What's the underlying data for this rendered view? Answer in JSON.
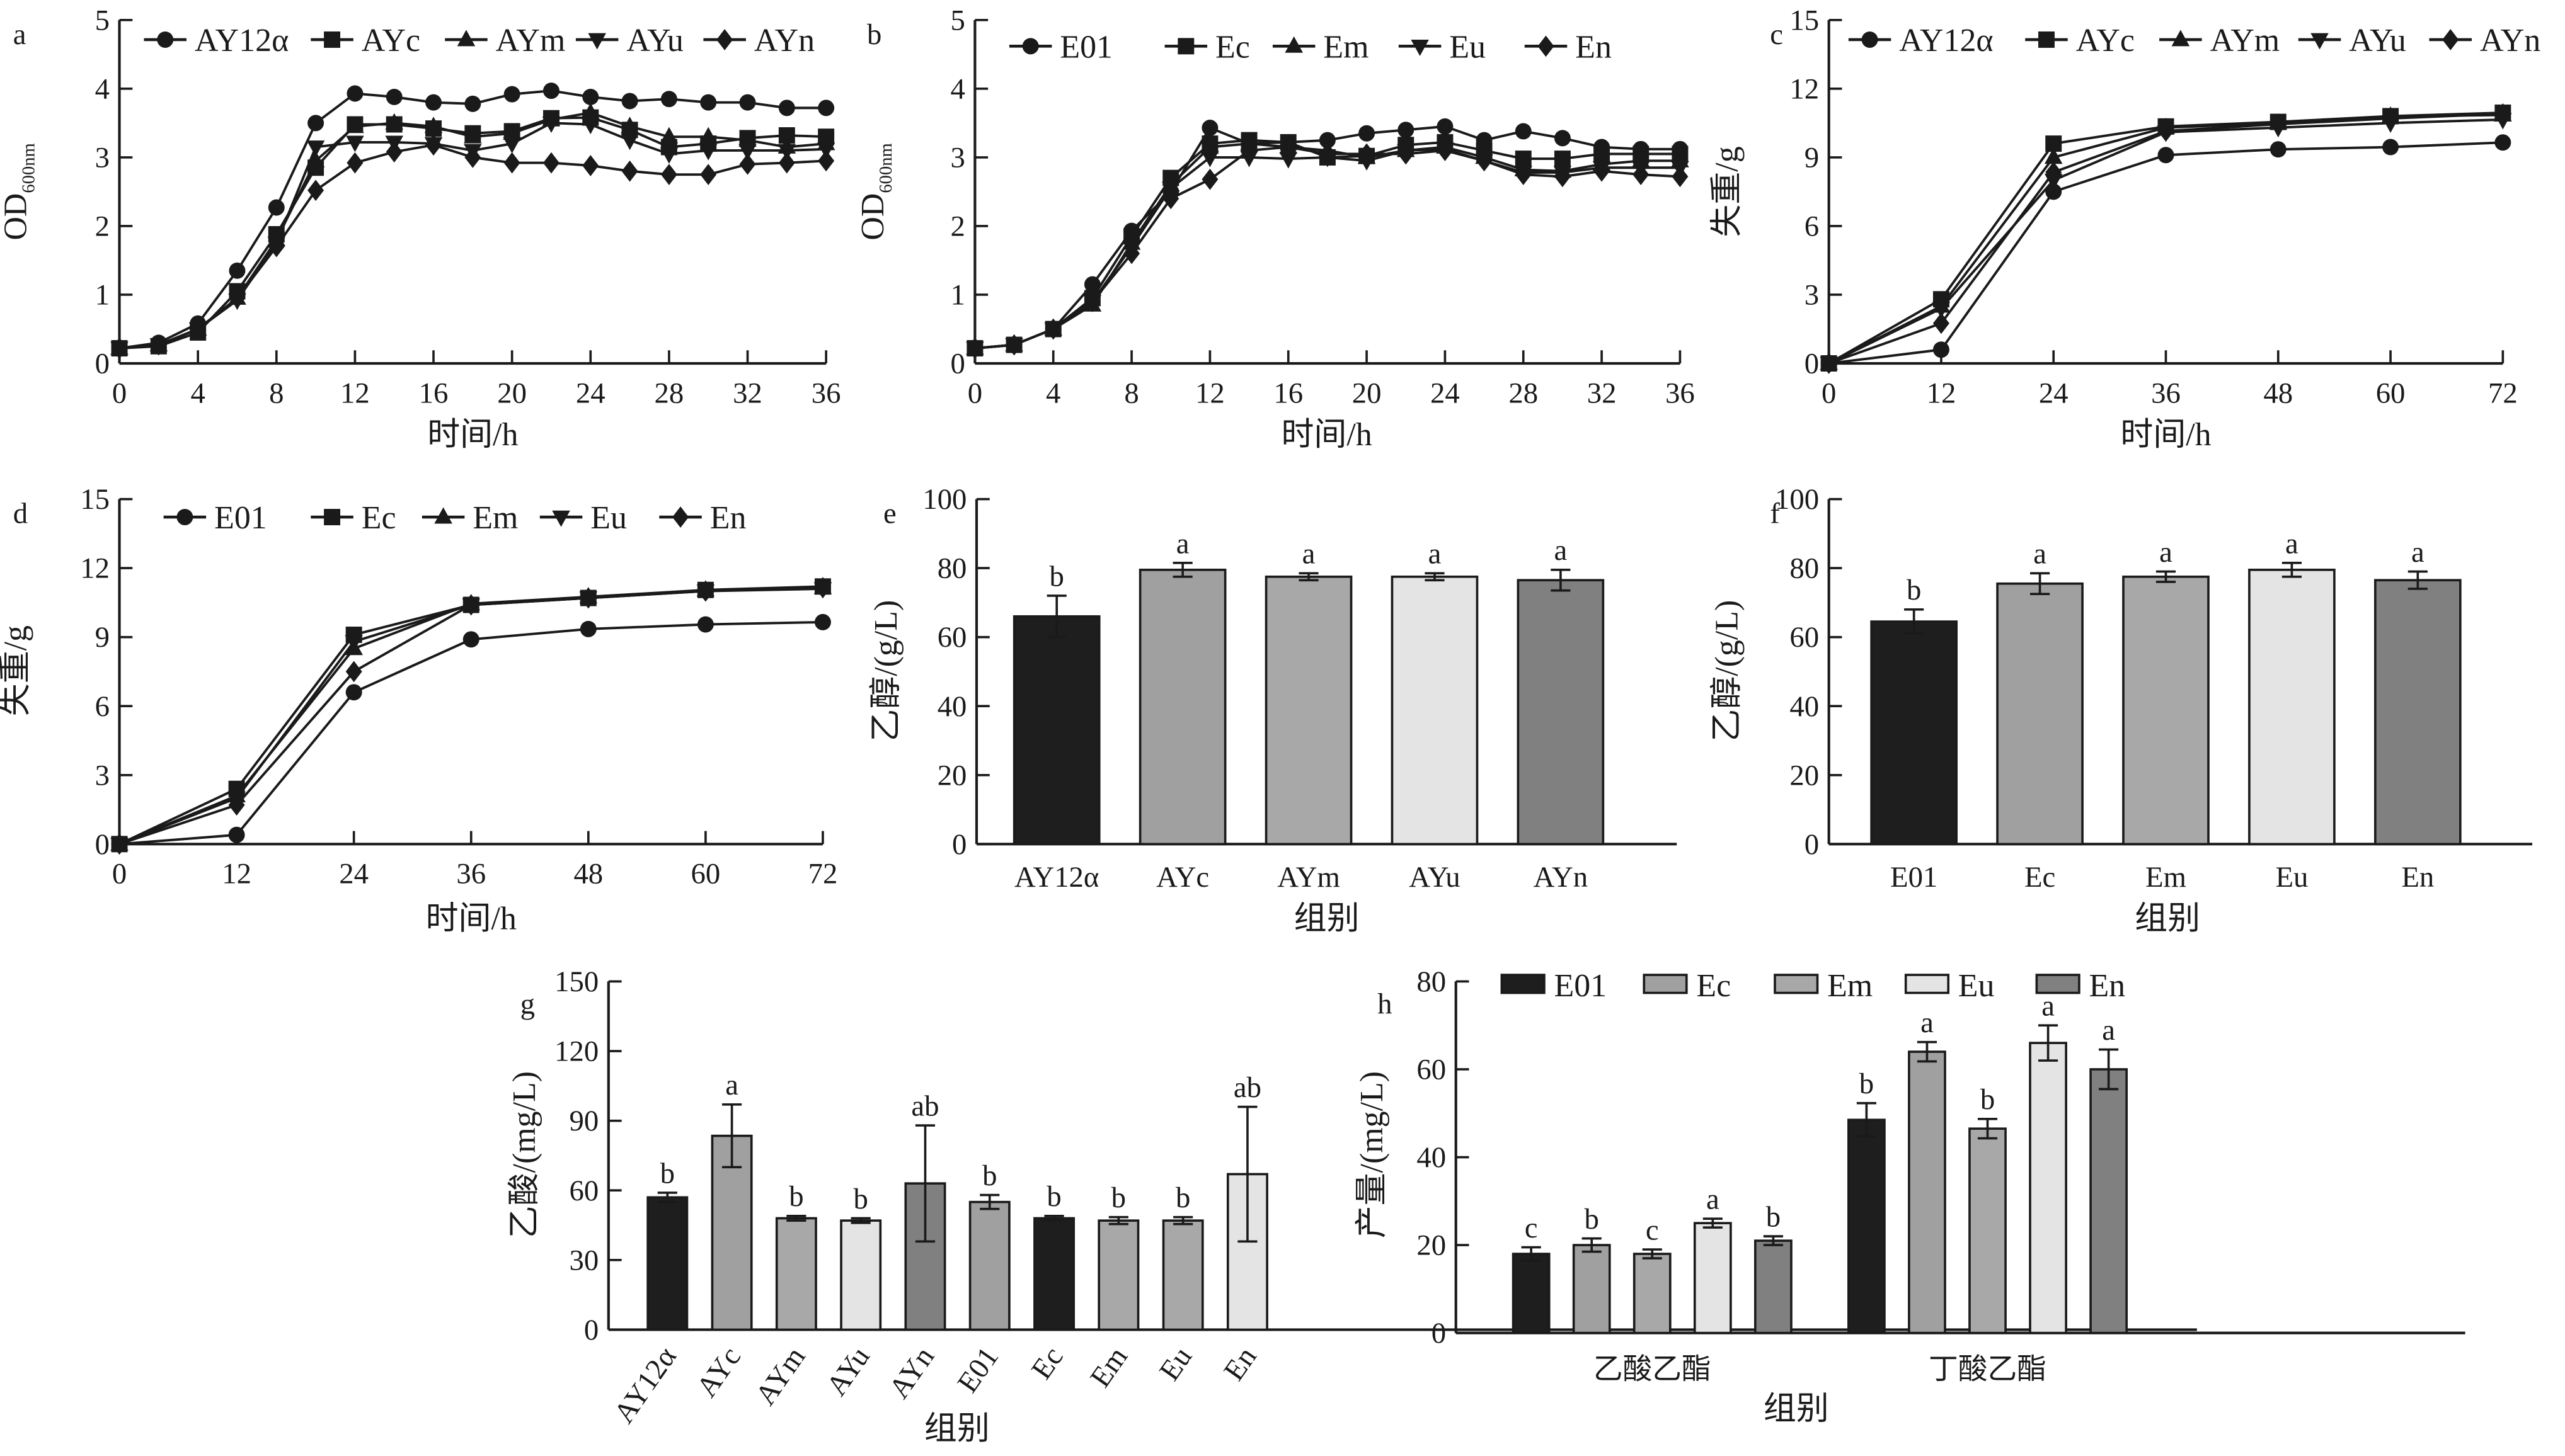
{
  "chart_data": [
    {
      "panel": "a",
      "type": "line",
      "xlabel": "时间/h",
      "ylabel": "OD",
      "ylabel_sub": "600nm",
      "xlim": [
        0,
        36
      ],
      "ylim": [
        0,
        5
      ],
      "xticks": [
        0,
        4,
        8,
        12,
        16,
        20,
        24,
        28,
        32,
        36
      ],
      "yticks": [
        0,
        1,
        2,
        3,
        4,
        5
      ],
      "x": [
        0,
        2,
        4,
        6,
        8,
        10,
        12,
        14,
        16,
        18,
        20,
        22,
        24,
        26,
        28,
        30,
        32,
        34,
        36
      ],
      "legend": "top",
      "series": [
        {
          "name": "AY12α",
          "marker": "circle",
          "values": [
            0.22,
            0.3,
            0.58,
            1.35,
            2.27,
            3.5,
            3.93,
            3.88,
            3.8,
            3.78,
            3.92,
            3.97,
            3.88,
            3.82,
            3.85,
            3.8,
            3.8,
            3.72,
            3.72
          ]
        },
        {
          "name": "AYc",
          "marker": "square",
          "values": [
            0.22,
            0.25,
            0.45,
            1.05,
            1.88,
            2.85,
            3.48,
            3.48,
            3.42,
            3.35,
            3.38,
            3.57,
            3.58,
            3.4,
            3.15,
            3.2,
            3.28,
            3.32,
            3.3
          ]
        },
        {
          "name": "AYm",
          "marker": "triangle-up",
          "values": [
            0.22,
            0.27,
            0.5,
            0.95,
            1.8,
            2.95,
            3.45,
            3.5,
            3.45,
            3.3,
            3.35,
            3.55,
            3.65,
            3.45,
            3.3,
            3.3,
            3.25,
            3.15,
            3.2
          ]
        },
        {
          "name": "AYu",
          "marker": "triangle-down",
          "values": [
            0.22,
            0.27,
            0.5,
            0.92,
            1.75,
            3.15,
            3.22,
            3.22,
            3.2,
            3.1,
            3.2,
            3.5,
            3.48,
            3.25,
            3.05,
            3.1,
            3.1,
            3.1,
            3.12
          ]
        },
        {
          "name": "AYn",
          "marker": "diamond",
          "values": [
            0.22,
            0.27,
            0.5,
            0.95,
            1.7,
            2.52,
            2.92,
            3.08,
            3.18,
            3.0,
            2.92,
            2.92,
            2.88,
            2.8,
            2.75,
            2.75,
            2.9,
            2.92,
            2.95
          ]
        }
      ]
    },
    {
      "panel": "b",
      "type": "line",
      "xlabel": "时间/h",
      "ylabel": "OD",
      "ylabel_sub": "600nm",
      "xlim": [
        0,
        36
      ],
      "ylim": [
        0,
        5
      ],
      "xticks": [
        0,
        4,
        8,
        12,
        16,
        20,
        24,
        28,
        32,
        36
      ],
      "yticks": [
        0,
        1,
        2,
        3,
        4,
        5
      ],
      "x": [
        0,
        2,
        4,
        6,
        8,
        10,
        12,
        14,
        16,
        18,
        20,
        22,
        24,
        26,
        28,
        30,
        32,
        34,
        36
      ],
      "legend": "top",
      "series": [
        {
          "name": "E01",
          "marker": "circle",
          "values": [
            0.22,
            0.27,
            0.5,
            1.15,
            1.93,
            2.5,
            3.43,
            3.2,
            3.22,
            3.25,
            3.35,
            3.4,
            3.45,
            3.25,
            3.38,
            3.28,
            3.15,
            3.12,
            3.12
          ]
        },
        {
          "name": "Ec",
          "marker": "square",
          "values": [
            0.22,
            0.27,
            0.5,
            0.95,
            1.85,
            2.7,
            3.2,
            3.25,
            3.22,
            3.0,
            3.02,
            3.18,
            3.22,
            3.1,
            2.98,
            2.98,
            3.05,
            3.05,
            3.05
          ]
        },
        {
          "name": "Em",
          "marker": "triangle-up",
          "values": [
            0.22,
            0.27,
            0.5,
            0.85,
            1.75,
            2.6,
            3.15,
            3.2,
            3.15,
            3.1,
            3.0,
            3.1,
            3.15,
            3.0,
            2.82,
            2.8,
            2.9,
            2.95,
            2.95
          ]
        },
        {
          "name": "Eu",
          "marker": "triangle-down",
          "values": [
            0.22,
            0.27,
            0.5,
            0.9,
            1.7,
            2.55,
            3.0,
            3.0,
            2.98,
            3.0,
            2.95,
            3.1,
            3.12,
            2.95,
            2.78,
            2.78,
            2.85,
            2.85,
            2.85
          ]
        },
        {
          "name": "En",
          "marker": "diamond",
          "values": [
            0.22,
            0.27,
            0.5,
            0.9,
            1.6,
            2.4,
            2.68,
            3.1,
            3.15,
            3.05,
            3.05,
            3.05,
            3.1,
            2.95,
            2.75,
            2.72,
            2.8,
            2.75,
            2.72
          ]
        }
      ]
    },
    {
      "panel": "c",
      "type": "line",
      "xlabel": "时间/h",
      "ylabel": "失重/g",
      "xlim": [
        0,
        72
      ],
      "ylim": [
        0,
        15
      ],
      "xticks": [
        0,
        12,
        24,
        36,
        48,
        60,
        72
      ],
      "yticks": [
        0,
        3,
        6,
        9,
        12,
        15
      ],
      "x": [
        0,
        12,
        24,
        36,
        48,
        60,
        72
      ],
      "legend": "top",
      "series": [
        {
          "name": "AY12α",
          "marker": "circle",
          "values": [
            0,
            0.6,
            7.5,
            9.1,
            9.35,
            9.45,
            9.65
          ]
        },
        {
          "name": "AYc",
          "marker": "square",
          "values": [
            0,
            2.8,
            9.6,
            10.35,
            10.55,
            10.8,
            10.95
          ]
        },
        {
          "name": "AYm",
          "marker": "triangle-up",
          "values": [
            0,
            2.5,
            9.0,
            10.3,
            10.5,
            10.8,
            10.85
          ]
        },
        {
          "name": "AYu",
          "marker": "triangle-down",
          "values": [
            0,
            2.4,
            8.0,
            10.1,
            10.3,
            10.5,
            10.65
          ]
        },
        {
          "name": "AYn",
          "marker": "diamond",
          "values": [
            0,
            1.75,
            8.35,
            10.15,
            10.45,
            10.7,
            10.9
          ]
        }
      ]
    },
    {
      "panel": "d",
      "type": "line",
      "xlabel": "时间/h",
      "ylabel": "失重/g",
      "xlim": [
        0,
        72
      ],
      "ylim": [
        0,
        15
      ],
      "xticks": [
        0,
        12,
        24,
        36,
        48,
        60,
        72
      ],
      "yticks": [
        0,
        3,
        6,
        9,
        12,
        15
      ],
      "x": [
        0,
        12,
        24,
        36,
        48,
        60,
        72
      ],
      "legend": "top",
      "series": [
        {
          "name": "E01",
          "marker": "circle",
          "values": [
            0,
            0.4,
            6.6,
            8.9,
            9.35,
            9.55,
            9.65
          ]
        },
        {
          "name": "Ec",
          "marker": "square",
          "values": [
            0,
            2.4,
            9.1,
            10.4,
            10.7,
            11.05,
            11.2
          ]
        },
        {
          "name": "Em",
          "marker": "triangle-up",
          "values": [
            0,
            2.1,
            8.5,
            10.45,
            10.75,
            11.05,
            11.15
          ]
        },
        {
          "name": "Eu",
          "marker": "triangle-down",
          "values": [
            0,
            2.0,
            8.8,
            10.4,
            10.7,
            11.0,
            11.1
          ]
        },
        {
          "name": "En",
          "marker": "diamond",
          "values": [
            0,
            1.7,
            7.5,
            10.4,
            10.7,
            11.0,
            11.15
          ]
        }
      ]
    },
    {
      "panel": "e",
      "type": "bar",
      "xlabel": "组别",
      "ylabel": "乙醇/(g/L)",
      "ylim": [
        0,
        100
      ],
      "yticks": [
        0,
        20,
        40,
        60,
        80,
        100
      ],
      "categories": [
        "AY12α",
        "AYc",
        "AYm",
        "AYu",
        "AYn"
      ],
      "values": [
        66,
        79.5,
        77.5,
        77.5,
        76.5
      ],
      "errors": [
        6,
        2,
        1,
        1,
        3
      ],
      "letters": [
        "b",
        "a",
        "a",
        "a",
        "a"
      ],
      "colors": [
        "#1e1e1e",
        "#a0a0a0",
        "#a8a8a8",
        "#e4e4e4",
        "#808080"
      ]
    },
    {
      "panel": "f",
      "type": "bar",
      "xlabel": "组别",
      "ylabel": "乙醇/(g/L)",
      "ylim": [
        0,
        100
      ],
      "yticks": [
        0,
        20,
        40,
        60,
        80,
        100
      ],
      "categories": [
        "E01",
        "Ec",
        "Em",
        "Eu",
        "En"
      ],
      "values": [
        64.5,
        75.5,
        77.5,
        79.5,
        76.5
      ],
      "errors": [
        3.5,
        3,
        1.5,
        2,
        2.5
      ],
      "letters": [
        "b",
        "a",
        "a",
        "a",
        "a"
      ],
      "colors": [
        "#1e1e1e",
        "#a0a0a0",
        "#a8a8a8",
        "#e4e4e4",
        "#808080"
      ]
    },
    {
      "panel": "g",
      "type": "bar",
      "xlabel": "组别",
      "ylabel": "乙酸/(mg/L)",
      "ylim": [
        0,
        150
      ],
      "yticks": [
        0,
        30,
        60,
        90,
        120,
        150
      ],
      "categories": [
        "AY12α",
        "AYc",
        "AYm",
        "AYu",
        "AYn",
        "E01",
        "Ec",
        "Em",
        "Eu",
        "En"
      ],
      "values": [
        57,
        83.5,
        48,
        47,
        63,
        55,
        48,
        47,
        47,
        67
      ],
      "errors": [
        2,
        13.5,
        1,
        1,
        25,
        3,
        1,
        1.5,
        1.5,
        29
      ],
      "letters": [
        "b",
        "a",
        "b",
        "b",
        "ab",
        "b",
        "b",
        "b",
        "b",
        "ab"
      ],
      "colors": [
        "#1e1e1e",
        "#a0a0a0",
        "#a8a8a8",
        "#e4e4e4",
        "#808080",
        "#a0a0a0",
        "#1e1e1e",
        "#a8a8a8",
        "#a8a8a8",
        "#e4e4e4"
      ]
    },
    {
      "panel": "h",
      "type": "bar",
      "xlabel": "组别",
      "ylabel": "产量/(mg/L)",
      "ylim": [
        0,
        80
      ],
      "yticks": [
        0,
        20,
        40,
        60,
        80
      ],
      "categories": [
        "乙酸乙酯",
        "丁酸乙酯"
      ],
      "legend": "top",
      "series": [
        {
          "name": "E01",
          "color": "#1e1e1e",
          "values": [
            18,
            48.5
          ],
          "errors": [
            1.5,
            3.8
          ],
          "letters": [
            "c",
            "b"
          ]
        },
        {
          "name": "Ec",
          "color": "#a0a0a0",
          "values": [
            20,
            64
          ],
          "errors": [
            1.5,
            2.2
          ],
          "letters": [
            "b",
            "a"
          ]
        },
        {
          "name": "Em",
          "color": "#a8a8a8",
          "values": [
            18,
            46.5
          ],
          "errors": [
            1,
            2.2
          ],
          "letters": [
            "c",
            "b"
          ]
        },
        {
          "name": "Eu",
          "color": "#e4e4e4",
          "values": [
            25,
            66
          ],
          "errors": [
            1,
            4
          ],
          "letters": [
            "a",
            "a"
          ]
        },
        {
          "name": "En",
          "color": "#808080",
          "values": [
            21,
            60
          ],
          "errors": [
            1,
            4.5
          ],
          "letters": [
            "b",
            "a"
          ]
        }
      ]
    }
  ]
}
